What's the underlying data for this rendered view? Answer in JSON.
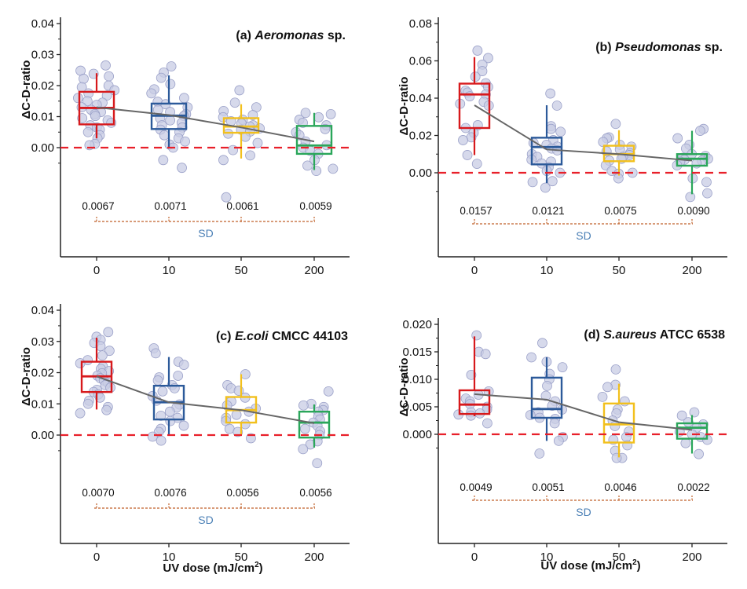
{
  "chart_data": [
    {
      "type": "box",
      "panel_id": "a",
      "title_prefix": "(a) ",
      "title_italic": "Aeromonas",
      "title_suffix": " sp.",
      "xlabel": "",
      "ylabel": "ΔC-D-ratio",
      "categories": [
        "0",
        "10",
        "50",
        "200"
      ],
      "ylim": [
        -0.02,
        0.04
      ],
      "yticks": [
        0.0,
        0.01,
        0.02,
        0.03,
        0.04
      ],
      "ytick_labels": [
        "0.00",
        "0.01",
        "0.02",
        "0.03",
        "0.04"
      ],
      "reference_line": 0.0,
      "boxes": [
        {
          "q1": 0.0075,
          "median": 0.0128,
          "q3": 0.018,
          "whisker_low": 0.003,
          "whisker_high": 0.024,
          "mean": 0.013
        },
        {
          "q1": 0.006,
          "median": 0.0103,
          "q3": 0.0142,
          "whisker_low": 0.0,
          "whisker_high": 0.0233,
          "mean": 0.0105
        },
        {
          "q1": 0.0048,
          "median": 0.0068,
          "q3": 0.0095,
          "whisker_low": -0.0035,
          "whisker_high": 0.014,
          "mean": 0.0065
        },
        {
          "q1": -0.002,
          "median": 0.0007,
          "q3": 0.007,
          "whisker_low": -0.0072,
          "whisker_high": 0.0112,
          "mean": 0.002
        }
      ],
      "points": [
        [
          0.0265,
          0.0248,
          0.0238,
          0.023,
          0.0222,
          0.02,
          0.0195,
          0.0185,
          0.0175,
          0.0168,
          0.016,
          0.015,
          0.0145,
          0.0138,
          0.013,
          0.0122,
          0.0115,
          0.0108,
          0.0102,
          0.0095,
          0.0088,
          0.008,
          0.0072,
          0.0065,
          0.0058,
          0.005,
          0.004,
          0.003,
          0.0012,
          0.0008
        ],
        [
          0.0262,
          0.0242,
          0.0225,
          0.0205,
          0.0188,
          0.0175,
          0.016,
          0.0148,
          0.014,
          0.013,
          0.0122,
          0.0115,
          0.0108,
          0.0102,
          0.0095,
          0.0088,
          0.008,
          0.0072,
          0.0065,
          0.0058,
          0.005,
          0.004,
          0.003,
          0.002,
          0.001,
          0.0,
          -0.004,
          -0.0065
        ],
        [
          0.0185,
          0.0145,
          0.013,
          0.0118,
          0.0105,
          0.0098,
          0.009,
          0.0085,
          0.0078,
          0.0072,
          0.0068,
          0.0062,
          0.0058,
          0.0052,
          0.0045,
          0.0035,
          0.0015,
          -0.0008,
          -0.0025,
          -0.004,
          -0.016
        ],
        [
          0.0112,
          0.0108,
          0.0098,
          0.009,
          0.008,
          0.0072,
          0.006,
          0.005,
          0.004,
          0.002,
          0.0008,
          0.0,
          -0.001,
          -0.002,
          -0.004,
          -0.0058,
          -0.0068,
          -0.0075
        ]
      ],
      "sd_values": [
        "0.0067",
        "0.0071",
        "0.0061",
        "0.0059"
      ],
      "sd_label": "SD"
    },
    {
      "type": "box",
      "panel_id": "b",
      "title_prefix": "(b) ",
      "title_italic": "Pseudomonas",
      "title_suffix": " sp.",
      "xlabel": "",
      "ylabel": "ΔC-D-ratio",
      "categories": [
        "0",
        "10",
        "50",
        "200"
      ],
      "ylim": [
        -0.04,
        0.08
      ],
      "yticks": [
        0.0,
        0.02,
        0.04,
        0.06,
        0.08
      ],
      "ytick_labels": [
        "0.00",
        "0.02",
        "0.04",
        "0.06",
        "0.08"
      ],
      "reference_line": 0.0,
      "boxes": [
        {
          "q1": 0.024,
          "median": 0.042,
          "q3": 0.0478,
          "whisker_low": 0.0095,
          "whisker_high": 0.062,
          "mean": 0.0362
        },
        {
          "q1": 0.0045,
          "median": 0.0138,
          "q3": 0.0188,
          "whisker_low": -0.0055,
          "whisker_high": 0.0362,
          "mean": 0.0125
        },
        {
          "q1": 0.0062,
          "median": 0.01,
          "q3": 0.0145,
          "whisker_low": -0.0015,
          "whisker_high": 0.0228,
          "mean": 0.01
        },
        {
          "q1": 0.0038,
          "median": 0.0075,
          "q3": 0.01,
          "whisker_low": -0.0115,
          "whisker_high": 0.0225,
          "mean": 0.0065
        }
      ],
      "points": [
        [
          0.0655,
          0.0615,
          0.058,
          0.0545,
          0.0515,
          0.048,
          0.046,
          0.044,
          0.043,
          0.042,
          0.041,
          0.038,
          0.037,
          0.036,
          0.0255,
          0.024,
          0.0215,
          0.019,
          0.0175,
          0.0095,
          0.0048
        ],
        [
          0.0425,
          0.036,
          0.025,
          0.0235,
          0.022,
          0.0175,
          0.016,
          0.015,
          0.014,
          0.013,
          0.012,
          0.01,
          0.0085,
          0.007,
          0.006,
          0.005,
          0.003,
          0.001,
          0.0,
          -0.0045,
          -0.005,
          -0.008
        ],
        [
          0.0262,
          0.019,
          0.0185,
          0.0165,
          0.015,
          0.014,
          0.0125,
          0.0115,
          0.0105,
          0.0095,
          0.0085,
          0.0075,
          0.0065,
          0.004,
          0.001,
          0.0,
          -0.0005,
          -0.003
        ],
        [
          0.0235,
          0.0225,
          0.0185,
          0.015,
          0.013,
          0.01,
          0.009,
          0.008,
          0.0075,
          0.007,
          0.0065,
          0.006,
          0.005,
          0.004,
          -0.003,
          -0.005,
          -0.011,
          -0.013
        ]
      ],
      "sd_values": [
        "0.0157",
        "0.0121",
        "0.0075",
        "0.0090"
      ],
      "sd_label": "SD"
    },
    {
      "type": "box",
      "panel_id": "c",
      "title_prefix": "(c) ",
      "title_italic": "E.coli",
      "title_suffix": " CMCC 44103",
      "xlabel": "UV dose (mJ/cm²)",
      "ylabel": "ΔC-D-ratio",
      "categories": [
        "0",
        "10",
        "50",
        "200"
      ],
      "ylim": [
        -0.02,
        0.04
      ],
      "yticks": [
        0.0,
        0.01,
        0.02,
        0.03,
        0.04
      ],
      "ytick_labels": [
        "0.00",
        "0.01",
        "0.02",
        "0.03",
        "0.04"
      ],
      "reference_line": 0.0,
      "boxes": [
        {
          "q1": 0.0138,
          "median": 0.0188,
          "q3": 0.0235,
          "whisker_low": 0.0082,
          "whisker_high": 0.0312,
          "mean": 0.0188
        },
        {
          "q1": 0.005,
          "median": 0.0105,
          "q3": 0.0158,
          "whisker_low": 0.0,
          "whisker_high": 0.025,
          "mean": 0.0105
        },
        {
          "q1": 0.004,
          "median": 0.008,
          "q3": 0.0122,
          "whisker_low": 0.0,
          "whisker_high": 0.0195,
          "mean": 0.008
        },
        {
          "q1": -0.0008,
          "median": 0.004,
          "q3": 0.0075,
          "whisker_low": -0.004,
          "whisker_high": 0.0098,
          "mean": 0.0038
        }
      ],
      "points": [
        [
          0.033,
          0.0315,
          0.0305,
          0.0295,
          0.0285,
          0.027,
          0.0255,
          0.024,
          0.023,
          0.022,
          0.0212,
          0.0205,
          0.0198,
          0.019,
          0.0182,
          0.0175,
          0.0168,
          0.016,
          0.0152,
          0.0145,
          0.0138,
          0.013,
          0.012,
          0.011,
          0.01,
          0.009,
          0.008,
          0.007
        ],
        [
          0.0278,
          0.0262,
          0.0235,
          0.0225,
          0.019,
          0.0185,
          0.0175,
          0.016,
          0.015,
          0.014,
          0.0125,
          0.011,
          0.0098,
          0.0088,
          0.0075,
          0.0062,
          0.0055,
          0.0045,
          0.003,
          0.002,
          0.001,
          -0.0005,
          -0.0018
        ],
        [
          0.0195,
          0.016,
          0.015,
          0.0142,
          0.012,
          0.0108,
          0.0095,
          0.0085,
          0.0075,
          0.0065,
          0.0055,
          0.0045,
          0.0035,
          0.002,
          0.001,
          -0.001
        ],
        [
          0.014,
          0.01,
          0.0095,
          0.009,
          0.008,
          0.0075,
          0.006,
          0.005,
          0.004,
          0.003,
          0.002,
          0.0012,
          0.0,
          -0.002,
          -0.003,
          -0.0045,
          -0.009
        ]
      ],
      "sd_values": [
        "0.0070",
        "0.0076",
        "0.0056",
        "0.0056"
      ],
      "sd_label": "SD"
    },
    {
      "type": "box",
      "panel_id": "d",
      "title_prefix": "(d) ",
      "title_italic": "S.aureus",
      "title_suffix": " ATCC 6538",
      "xlabel": "UV dose (mJ/cm²)",
      "ylabel": "ΔC-D-ratio",
      "categories": [
        "0",
        "10",
        "50",
        "200"
      ],
      "ylim": [
        -0.02,
        0.022
      ],
      "yticks": [
        0.0,
        0.005,
        0.01,
        0.015,
        0.02
      ],
      "ytick_labels": [
        "0.000",
        "0.005",
        "0.010",
        "0.015",
        "0.020"
      ],
      "reference_line": 0.0,
      "boxes": [
        {
          "q1": 0.0037,
          "median": 0.0054,
          "q3": 0.008,
          "whisker_low": 0.0033,
          "whisker_high": 0.0178,
          "mean": 0.0073
        },
        {
          "q1": 0.003,
          "median": 0.0046,
          "q3": 0.0103,
          "whisker_low": -0.0012,
          "whisker_high": 0.014,
          "mean": 0.0063
        },
        {
          "q1": -0.0015,
          "median": 0.0018,
          "q3": 0.0056,
          "whisker_low": -0.0042,
          "whisker_high": 0.0092,
          "mean": 0.0022
        },
        {
          "q1": -0.0008,
          "median": 0.0012,
          "q3": 0.002,
          "whisker_low": -0.0035,
          "whisker_high": 0.0035,
          "mean": 0.0008
        }
      ],
      "points": [
        [
          0.018,
          0.015,
          0.0146,
          0.0108,
          0.0078,
          0.0072,
          0.0065,
          0.006,
          0.0055,
          0.005,
          0.0045,
          0.004,
          0.0038,
          0.0036,
          0.0034,
          0.002
        ],
        [
          0.0166,
          0.014,
          0.0132,
          0.0122,
          0.011,
          0.01,
          0.0088,
          0.007,
          0.006,
          0.0052,
          0.0045,
          0.004,
          0.0035,
          0.003,
          0.0028,
          0.002,
          -0.0005,
          -0.0012,
          -0.0035
        ],
        [
          0.0118,
          0.009,
          0.0086,
          0.0068,
          0.006,
          0.0045,
          0.0038,
          0.0025,
          0.0015,
          0.0005,
          -0.0005,
          -0.001,
          -0.002,
          -0.003,
          -0.0043,
          -0.0043
        ],
        [
          0.004,
          0.0034,
          0.0022,
          0.0018,
          0.0012,
          0.0005,
          0.0,
          -0.0005,
          -0.001,
          -0.0016,
          -0.0036
        ]
      ],
      "sd_values": [
        "0.0049",
        "0.0051",
        "0.0046",
        "0.0022"
      ],
      "sd_label": "SD"
    }
  ],
  "colors": {
    "box": [
      "#d7191c",
      "#2c5a9a",
      "#f2c01d",
      "#2aa65a"
    ],
    "points_fill": "#c8cce4",
    "points_stroke": "#9aa0c8",
    "mean_line": "#666666",
    "reference_line": "#e8202a",
    "bracket": "#c0622a",
    "sd_label": "#4a7fb5"
  }
}
